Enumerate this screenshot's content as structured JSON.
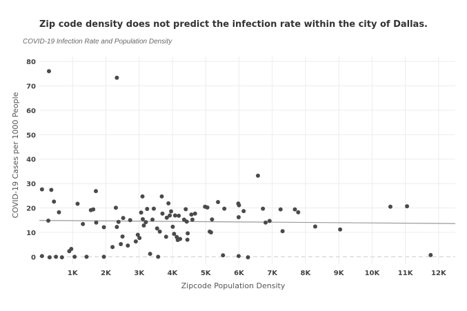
{
  "chart_data": {
    "type": "scatter",
    "title": "Zip code density does not predict the infection rate within the city of Dallas.",
    "subtitle": "COVID-19 Infection Rate and Population Density",
    "xlabel": "Zipcode Population Density",
    "ylabel": "COVID-19 Cases per 1000 People",
    "xlim": [
      0,
      12500
    ],
    "ylim": [
      -3,
      82
    ],
    "x_ticks": [
      1000,
      2000,
      3000,
      4000,
      5000,
      6000,
      7000,
      8000,
      9000,
      10000,
      11000,
      12000
    ],
    "x_tick_labels": [
      "1K",
      "2K",
      "3K",
      "4K",
      "5K",
      "6K",
      "7K",
      "8K",
      "9K",
      "10K",
      "11K",
      "12K"
    ],
    "y_ticks": [
      0,
      10,
      20,
      30,
      40,
      50,
      60,
      70,
      80
    ],
    "y_tick_labels": [
      "0",
      "10",
      "20",
      "30",
      "40",
      "50",
      "60",
      "70",
      "80"
    ],
    "grid": true,
    "trendline": {
      "x": [
        0,
        12500
      ],
      "y": [
        14.9,
        13.6
      ]
    },
    "colors": {
      "points": "#4a4a4a",
      "trendline": "#999999",
      "grid": "#ececec",
      "zero_line": "#cccccc"
    },
    "points": [
      {
        "x": 80,
        "y": 27.6
      },
      {
        "x": 80,
        "y": 0.3
      },
      {
        "x": 290,
        "y": 76.0
      },
      {
        "x": 270,
        "y": 14.8
      },
      {
        "x": 360,
        "y": 27.4
      },
      {
        "x": 310,
        "y": -0.2
      },
      {
        "x": 440,
        "y": 22.6
      },
      {
        "x": 500,
        "y": 0.0
      },
      {
        "x": 590,
        "y": 18.2
      },
      {
        "x": 680,
        "y": -0.2
      },
      {
        "x": 900,
        "y": 2.3
      },
      {
        "x": 960,
        "y": 3.2
      },
      {
        "x": 1060,
        "y": 0.0
      },
      {
        "x": 1150,
        "y": 21.7
      },
      {
        "x": 1310,
        "y": 13.4
      },
      {
        "x": 1420,
        "y": 0.0
      },
      {
        "x": 1550,
        "y": 19.1
      },
      {
        "x": 1620,
        "y": 19.4
      },
      {
        "x": 1700,
        "y": 26.9
      },
      {
        "x": 1710,
        "y": 14.0
      },
      {
        "x": 1940,
        "y": 12.1
      },
      {
        "x": 1940,
        "y": 0.0
      },
      {
        "x": 2200,
        "y": 4.0
      },
      {
        "x": 2300,
        "y": 20.1
      },
      {
        "x": 2330,
        "y": 73.3
      },
      {
        "x": 2330,
        "y": 12.2
      },
      {
        "x": 2380,
        "y": 14.3
      },
      {
        "x": 2450,
        "y": 5.2
      },
      {
        "x": 2520,
        "y": 15.9
      },
      {
        "x": 2500,
        "y": 8.3
      },
      {
        "x": 2660,
        "y": 4.6
      },
      {
        "x": 2730,
        "y": 15.0
      },
      {
        "x": 2900,
        "y": 6.3
      },
      {
        "x": 2960,
        "y": 9.0
      },
      {
        "x": 3010,
        "y": 7.7
      },
      {
        "x": 3100,
        "y": 24.7
      },
      {
        "x": 3060,
        "y": 18.1
      },
      {
        "x": 3110,
        "y": 15.4
      },
      {
        "x": 3140,
        "y": 12.8
      },
      {
        "x": 3200,
        "y": 14.2
      },
      {
        "x": 3240,
        "y": 19.6
      },
      {
        "x": 3330,
        "y": 1.2
      },
      {
        "x": 3400,
        "y": 15.2
      },
      {
        "x": 3440,
        "y": 19.7
      },
      {
        "x": 3540,
        "y": 11.6
      },
      {
        "x": 3570,
        "y": 0.0
      },
      {
        "x": 3620,
        "y": 10.3
      },
      {
        "x": 3680,
        "y": 24.7
      },
      {
        "x": 3700,
        "y": 17.7
      },
      {
        "x": 3810,
        "y": 8.2
      },
      {
        "x": 3830,
        "y": 16.0
      },
      {
        "x": 3880,
        "y": 21.9
      },
      {
        "x": 3920,
        "y": 16.9
      },
      {
        "x": 3960,
        "y": 18.6
      },
      {
        "x": 4010,
        "y": 12.3
      },
      {
        "x": 4050,
        "y": 9.4
      },
      {
        "x": 4080,
        "y": 16.9
      },
      {
        "x": 4130,
        "y": 8.1
      },
      {
        "x": 4160,
        "y": 6.9
      },
      {
        "x": 4190,
        "y": 16.8
      },
      {
        "x": 4230,
        "y": 7.3
      },
      {
        "x": 4350,
        "y": 15.2
      },
      {
        "x": 4400,
        "y": 19.5
      },
      {
        "x": 4430,
        "y": 14.4
      },
      {
        "x": 4450,
        "y": 7.0
      },
      {
        "x": 4460,
        "y": 9.6
      },
      {
        "x": 4570,
        "y": 17.3
      },
      {
        "x": 4600,
        "y": 15.2
      },
      {
        "x": 4680,
        "y": 17.7
      },
      {
        "x": 4980,
        "y": 20.5
      },
      {
        "x": 5050,
        "y": 20.2
      },
      {
        "x": 5120,
        "y": 10.3
      },
      {
        "x": 5160,
        "y": 10.0
      },
      {
        "x": 5190,
        "y": 15.3
      },
      {
        "x": 5370,
        "y": 22.4
      },
      {
        "x": 5520,
        "y": 0.6
      },
      {
        "x": 5560,
        "y": 19.7
      },
      {
        "x": 5980,
        "y": 21.8
      },
      {
        "x": 6000,
        "y": 21.1
      },
      {
        "x": 5990,
        "y": 16.2
      },
      {
        "x": 5990,
        "y": 0.3
      },
      {
        "x": 6140,
        "y": 18.7
      },
      {
        "x": 6270,
        "y": -0.2
      },
      {
        "x": 6570,
        "y": 33.2
      },
      {
        "x": 6720,
        "y": 19.7
      },
      {
        "x": 6800,
        "y": 14.0
      },
      {
        "x": 6920,
        "y": 14.7
      },
      {
        "x": 7250,
        "y": 19.4
      },
      {
        "x": 7310,
        "y": 10.5
      },
      {
        "x": 7680,
        "y": 19.4
      },
      {
        "x": 7780,
        "y": 18.2
      },
      {
        "x": 8290,
        "y": 12.4
      },
      {
        "x": 9040,
        "y": 11.2
      },
      {
        "x": 10550,
        "y": 20.5
      },
      {
        "x": 11050,
        "y": 20.7
      },
      {
        "x": 11760,
        "y": 0.7
      }
    ]
  }
}
